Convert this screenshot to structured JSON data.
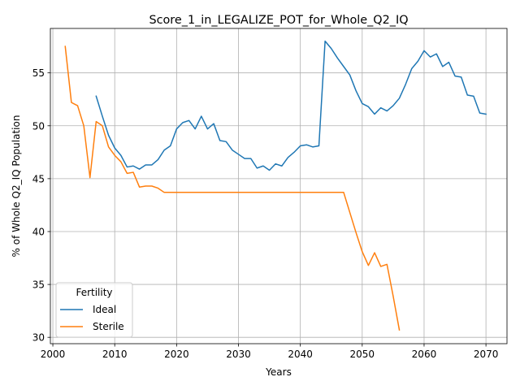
{
  "chart_data": {
    "type": "line",
    "title": "Score_1_in_LEGALIZE_POT_for_Whole_Q2_IQ",
    "xlabel": "Years",
    "ylabel": "% of Whole Q2_IQ Population",
    "xlim": [
      1999.6,
      2073.4
    ],
    "ylim": [
      29.4,
      59.2
    ],
    "xticks": [
      2000,
      2010,
      2020,
      2030,
      2040,
      2050,
      2060,
      2070
    ],
    "yticks": [
      30,
      35,
      40,
      45,
      50,
      55
    ],
    "grid": true,
    "legend": {
      "title": "Fertility",
      "position": "lower-left"
    },
    "series": [
      {
        "name": "Ideal",
        "color": "#1f77b4",
        "x": [
          2007,
          2008,
          2009,
          2010,
          2011,
          2012,
          2013,
          2014,
          2015,
          2016,
          2017,
          2018,
          2019,
          2020,
          2021,
          2022,
          2023,
          2024,
          2025,
          2026,
          2027,
          2028,
          2029,
          2030,
          2031,
          2032,
          2033,
          2034,
          2035,
          2036,
          2037,
          2038,
          2039,
          2040,
          2041,
          2042,
          2043,
          2044,
          2045,
          2046,
          2047,
          2048,
          2049,
          2050,
          2051,
          2052,
          2053,
          2054,
          2055,
          2056,
          2057,
          2058,
          2059,
          2060,
          2061,
          2062,
          2063,
          2064,
          2065,
          2066,
          2067,
          2068,
          2069,
          2070
        ],
        "y": [
          52.8,
          50.9,
          49.1,
          47.9,
          47.2,
          46.1,
          46.2,
          45.9,
          46.3,
          46.3,
          46.8,
          47.7,
          48.1,
          49.7,
          50.3,
          50.5,
          49.7,
          50.9,
          49.7,
          50.2,
          48.6,
          48.5,
          47.7,
          47.3,
          46.9,
          46.9,
          46.0,
          46.2,
          45.8,
          46.4,
          46.2,
          47.0,
          47.5,
          48.1,
          48.2,
          48.0,
          48.1,
          58.0,
          57.3,
          56.4,
          55.6,
          54.8,
          53.3,
          52.1,
          51.8,
          51.1,
          51.7,
          51.4,
          51.9,
          52.6,
          53.9,
          55.4,
          56.1,
          57.1,
          56.5,
          56.8,
          55.6,
          56.0,
          54.7,
          54.6,
          52.9,
          52.8,
          51.2,
          51.1
        ]
      },
      {
        "name": "Sterile",
        "color": "#ff7f0e",
        "x": [
          2002,
          2003,
          2004,
          2005,
          2006,
          2007,
          2008,
          2009,
          2010,
          2011,
          2012,
          2013,
          2014,
          2015,
          2016,
          2017,
          2018,
          2019,
          2020,
          2021,
          2022,
          2023,
          2024,
          2025,
          2026,
          2027,
          2028,
          2029,
          2030,
          2031,
          2032,
          2033,
          2034,
          2035,
          2036,
          2037,
          2038,
          2039,
          2040,
          2041,
          2042,
          2043,
          2044,
          2045,
          2046,
          2047,
          2048,
          2049,
          2050,
          2051,
          2052,
          2053,
          2054,
          2055,
          2056
        ],
        "y": [
          57.5,
          52.2,
          51.9,
          50.0,
          45.1,
          50.4,
          50.0,
          48.0,
          47.2,
          46.6,
          45.5,
          45.6,
          44.2,
          44.3,
          44.3,
          44.1,
          43.7,
          43.7,
          43.7,
          43.7,
          43.7,
          43.7,
          43.7,
          43.7,
          43.7,
          43.7,
          43.7,
          43.7,
          43.7,
          43.7,
          43.7,
          43.7,
          43.7,
          43.7,
          43.7,
          43.7,
          43.7,
          43.7,
          43.7,
          43.7,
          43.7,
          43.7,
          43.7,
          43.7,
          43.7,
          43.7,
          41.8,
          39.9,
          38.1,
          36.8,
          38.0,
          36.7,
          36.9,
          33.9,
          30.7
        ]
      }
    ]
  }
}
